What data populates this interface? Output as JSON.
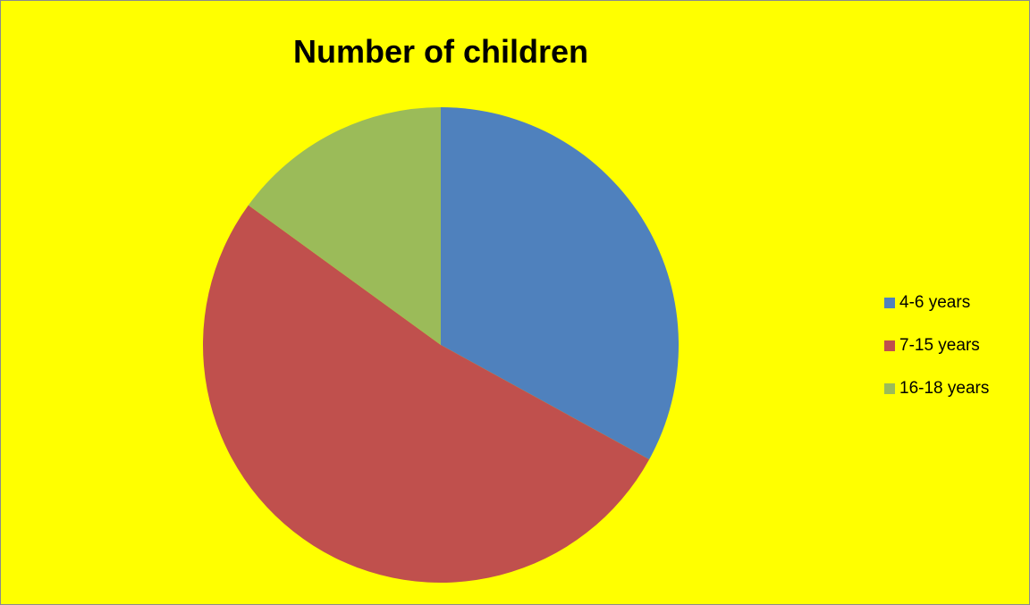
{
  "chart_data": {
    "type": "pie",
    "title": "Number of children",
    "categories": [
      "4-6 years",
      "7-15 years",
      "16-18 years"
    ],
    "values": [
      33,
      52,
      15
    ],
    "colors": [
      "#4f81bd",
      "#c0504d",
      "#9bbb59"
    ],
    "legend_position": "right",
    "start_angle_deg": 0,
    "direction": "clockwise",
    "background": "#ffff00"
  }
}
